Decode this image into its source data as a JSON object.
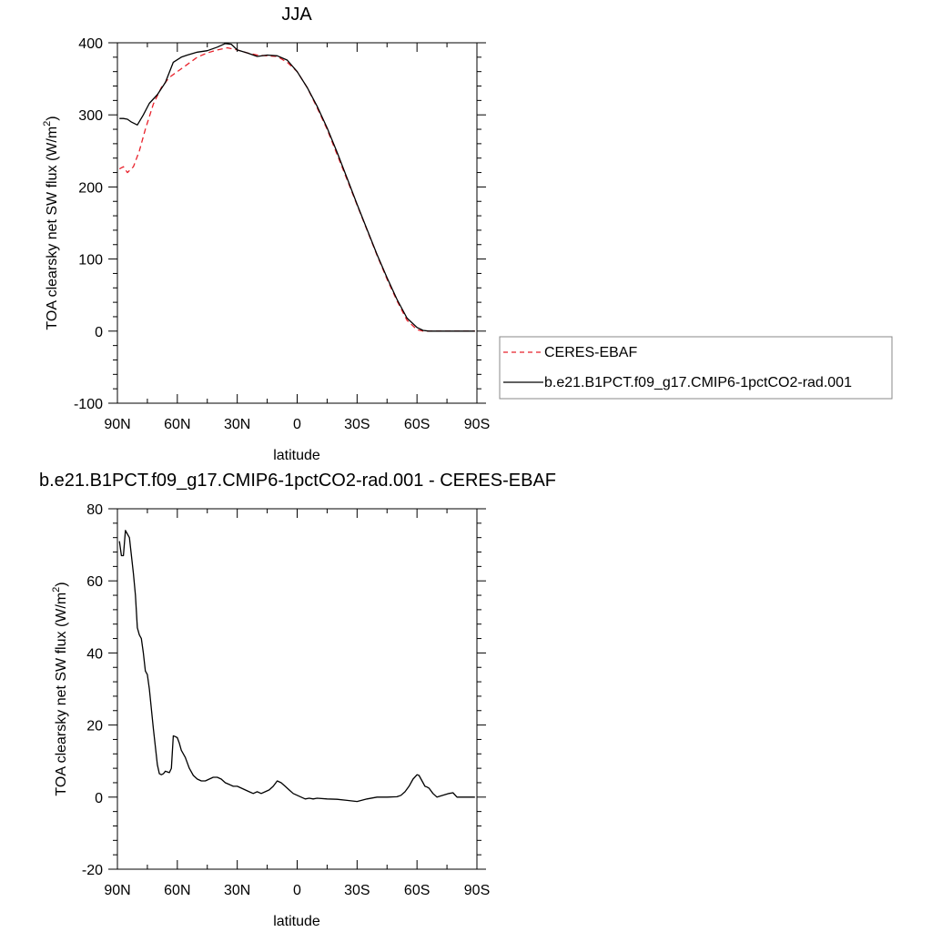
{
  "chart_data": [
    {
      "type": "line",
      "title": "JJA",
      "xlabel": "latitude",
      "ylabel": "TOA clearsky net SW flux (W/m",
      "ylabel_sup": "2",
      "ylabel_tail": ")",
      "xlim": [
        90,
        -90
      ],
      "ylim": [
        -100,
        400
      ],
      "x_ticks": [
        90,
        60,
        30,
        0,
        -30,
        -60,
        -90
      ],
      "x_tick_labels": [
        "90N",
        "60N",
        "30N",
        "0",
        "30S",
        "60S",
        "90S"
      ],
      "y_ticks": [
        -100,
        0,
        100,
        200,
        300,
        400
      ],
      "y_tick_labels": [
        "-100",
        "0",
        "100",
        "200",
        "300",
        "400"
      ],
      "legend_position": "right",
      "series": [
        {
          "name": "CERES-EBAF",
          "color": "#e8202a",
          "dash": "dashed",
          "x": [
            89,
            87,
            85,
            82,
            79,
            76,
            72,
            68,
            64,
            60,
            55,
            50,
            45,
            40,
            35,
            30,
            25,
            20,
            15,
            10,
            5,
            0,
            -5,
            -10,
            -15,
            -20,
            -25,
            -30,
            -35,
            -40,
            -45,
            -50,
            -55,
            -60,
            -63,
            -66,
            -69,
            -72,
            -75,
            -80,
            -85,
            -89
          ],
          "y": [
            225,
            228,
            220,
            228,
            250,
            280,
            315,
            338,
            352,
            360,
            370,
            380,
            386,
            390,
            393,
            390,
            386,
            383,
            382,
            381,
            373,
            360,
            338,
            310,
            280,
            245,
            210,
            175,
            140,
            105,
            72,
            42,
            15,
            2,
            0,
            0,
            0,
            0,
            0,
            0,
            0,
            0
          ]
        },
        {
          "name": "b.e21.B1PCT.f09_g17.CMIP6-1pctCO2-rad.001",
          "color": "#000000",
          "dash": "solid",
          "x": [
            89,
            87,
            85,
            83,
            80,
            77,
            74,
            70,
            66,
            62,
            58,
            55,
            50,
            45,
            40,
            36,
            33,
            30,
            25,
            20,
            15,
            10,
            5,
            0,
            -5,
            -10,
            -15,
            -20,
            -25,
            -30,
            -35,
            -40,
            -45,
            -50,
            -55,
            -60,
            -63,
            -66,
            -69,
            -72,
            -75,
            -80,
            -85,
            -89
          ],
          "y": [
            295,
            295,
            294,
            290,
            286,
            300,
            316,
            328,
            345,
            373,
            380,
            383,
            387,
            389,
            394,
            399,
            398,
            390,
            386,
            381,
            383,
            382,
            376,
            360,
            338,
            312,
            282,
            248,
            212,
            176,
            141,
            106,
            74,
            44,
            18,
            5,
            1,
            0,
            0,
            0,
            0,
            0,
            0,
            0
          ]
        }
      ]
    },
    {
      "type": "line",
      "title": "b.e21.B1PCT.f09_g17.CMIP6-1pctCO2-rad.001 - CERES-EBAF",
      "xlabel": "latitude",
      "ylabel": "TOA clearsky net SW flux (W/m",
      "ylabel_sup": "2",
      "ylabel_tail": ")",
      "xlim": [
        90,
        -90
      ],
      "ylim": [
        -20,
        80
      ],
      "x_ticks": [
        90,
        60,
        30,
        0,
        -30,
        -60,
        -90
      ],
      "x_tick_labels": [
        "90N",
        "60N",
        "30N",
        "0",
        "30S",
        "60S",
        "90S"
      ],
      "y_ticks": [
        -20,
        0,
        20,
        40,
        60,
        80
      ],
      "y_tick_labels": [
        "-20",
        "0",
        "20",
        "40",
        "60",
        "80"
      ],
      "series": [
        {
          "color": "#000000",
          "dash": "solid",
          "x": [
            89,
            88,
            87,
            86,
            84,
            83,
            82,
            81,
            80,
            79,
            78,
            77,
            76,
            75,
            74,
            72,
            70,
            69,
            68,
            67,
            66,
            65,
            64,
            63,
            62,
            61,
            60,
            59,
            58,
            56,
            54,
            52,
            50,
            48,
            46,
            44,
            42,
            40,
            38,
            36,
            34,
            32,
            30,
            28,
            26,
            24,
            22,
            20,
            18,
            16,
            14,
            12,
            10,
            8,
            6,
            4,
            2,
            0,
            -2,
            -4,
            -6,
            -8,
            -10,
            -15,
            -20,
            -25,
            -30,
            -35,
            -40,
            -45,
            -50,
            -52,
            -54,
            -56,
            -58,
            -60,
            -61,
            -62,
            -63,
            -64,
            -65,
            -66,
            -68,
            -70,
            -73,
            -76,
            -78,
            -80,
            -85,
            -89
          ],
          "y": [
            71,
            67,
            67,
            74,
            72,
            67,
            62,
            56,
            47,
            45,
            44,
            40,
            35,
            34,
            30,
            19,
            9,
            6.5,
            6.2,
            6.5,
            7.2,
            7,
            6.8,
            8,
            17,
            16.8,
            16.5,
            15,
            13,
            11,
            8,
            6,
            5,
            4.5,
            4.5,
            5,
            5.5,
            5.5,
            5,
            4,
            3.5,
            3,
            3,
            2.5,
            2,
            1.5,
            1,
            1.5,
            1,
            1.5,
            2,
            3,
            4.5,
            4,
            3,
            2,
            1,
            0.5,
            0,
            -0.5,
            -0.3,
            -0.5,
            -0.3,
            -0.5,
            -0.6,
            -0.9,
            -1.2,
            -0.5,
            0,
            0,
            0.1,
            0.5,
            1.5,
            3,
            5,
            6.2,
            6,
            5,
            4,
            3,
            2.8,
            2.5,
            1,
            0,
            0.5,
            1,
            1.2,
            0,
            0,
            0
          ]
        }
      ]
    }
  ]
}
